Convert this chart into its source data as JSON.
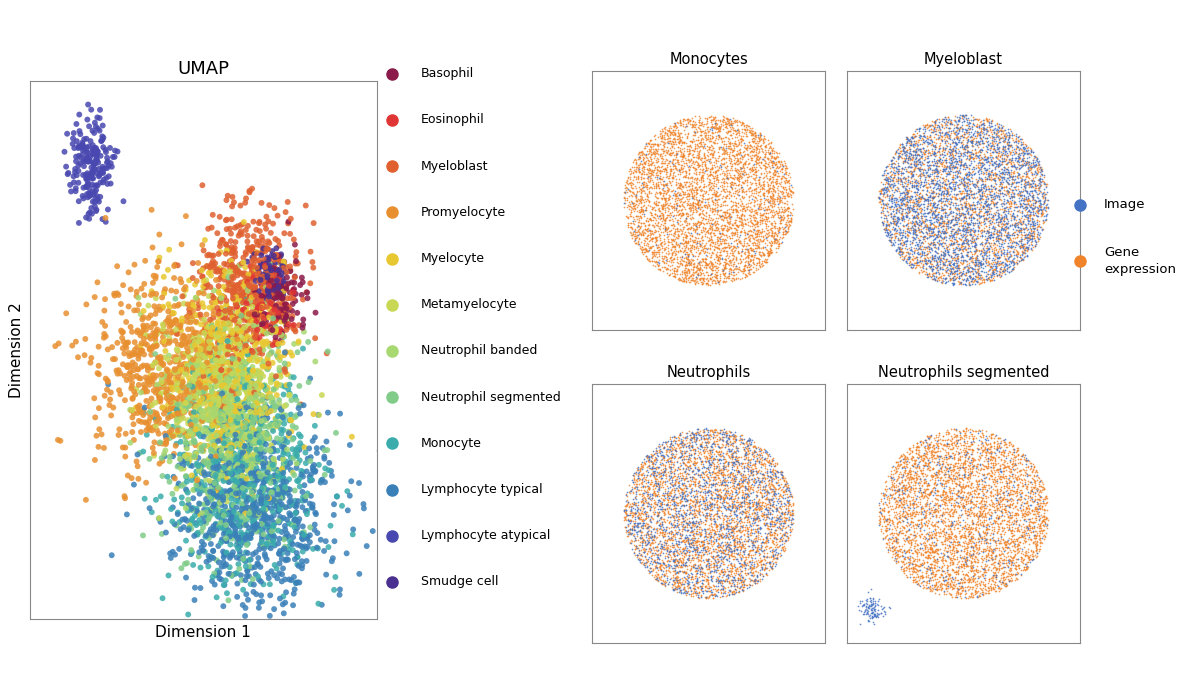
{
  "umap_title": "UMAP",
  "umap_xlabel": "Dimension 1",
  "umap_ylabel": "Dimension 2",
  "cell_types": [
    "Basophil",
    "Eosinophil",
    "Myeloblast",
    "Promyelocyte",
    "Myelocyte",
    "Metamyelocyte",
    "Neutrophil banded",
    "Neutrophil segmented",
    "Monocyte",
    "Lymphocyte typical",
    "Lymphocyte atypical",
    "Smudge cell"
  ],
  "cell_colors": [
    "#8B1A4A",
    "#E03535",
    "#E06030",
    "#E89030",
    "#E8C830",
    "#C8D855",
    "#A8D870",
    "#80CC88",
    "#3AACAC",
    "#3A80B8",
    "#4848B0",
    "#4A3090"
  ],
  "scatter_panels": [
    "Monocytes",
    "Myeloblast",
    "Neutrophils",
    "Neutrophils segmented"
  ],
  "image_color": "#4472C4",
  "gene_color": "#F0842A",
  "background_color": "#ffffff",
  "seed": 42
}
